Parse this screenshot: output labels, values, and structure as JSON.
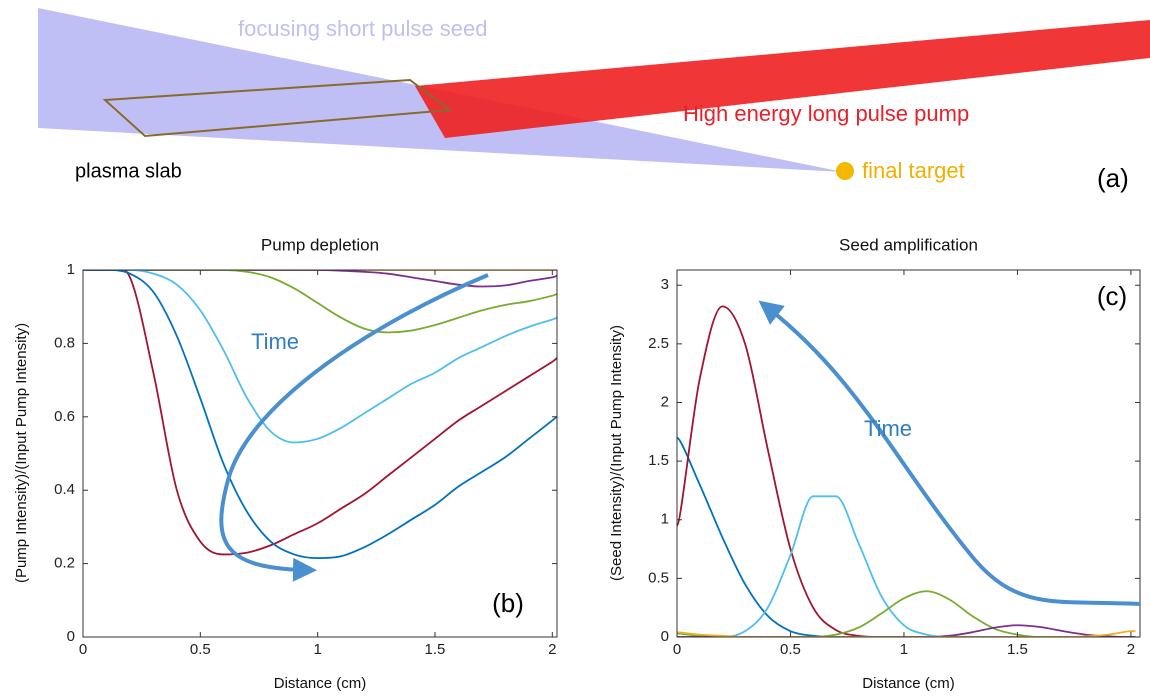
{
  "diagram": {
    "seed_label": "focusing short pulse seed",
    "pump_label": "High energy long pulse pump",
    "slab_label": "plasma slab",
    "target_label": "final target",
    "panel_label": "(a)"
  },
  "chart_data": [
    {
      "type": "line",
      "title": "Pump depletion",
      "xlabel": "Distance (cm)",
      "ylabel": "(Pump Intensity)/(Input Pump Intensity)",
      "annotations": [
        "Time",
        "(b)"
      ],
      "x": [
        0,
        0.1,
        0.2,
        0.3,
        0.4,
        0.5,
        0.6,
        0.7,
        0.8,
        0.9,
        1.0,
        1.1,
        1.2,
        1.3,
        1.4,
        1.5,
        1.6,
        1.7,
        1.8,
        1.9,
        2.0,
        2.02
      ],
      "xlim": [
        0,
        2.02
      ],
      "xticks": [
        0,
        0.5,
        1,
        1.5,
        2
      ],
      "ylim": [
        0,
        1
      ],
      "yticks": [
        0,
        0.2,
        0.4,
        0.6,
        0.8,
        1
      ],
      "series": [
        {
          "color": "#edb120",
          "values": [
            1,
            1,
            1,
            1,
            1,
            1,
            1,
            1,
            1,
            1,
            1,
            1,
            1,
            1,
            1,
            1,
            1,
            1,
            1,
            1,
            1,
            1
          ]
        },
        {
          "color": "#7e2f8e",
          "values": [
            1,
            1,
            1,
            1,
            1,
            1,
            1,
            1,
            1,
            1,
            1,
            0.998,
            0.995,
            0.99,
            0.98,
            0.97,
            0.96,
            0.955,
            0.958,
            0.97,
            0.98,
            0.985
          ]
        },
        {
          "color": "#77ac30",
          "values": [
            1,
            1,
            1,
            1,
            1,
            1,
            1,
            0.995,
            0.98,
            0.95,
            0.91,
            0.87,
            0.84,
            0.83,
            0.835,
            0.85,
            0.87,
            0.89,
            0.905,
            0.915,
            0.93,
            0.935
          ]
        },
        {
          "color": "#4dbeee",
          "values": [
            1,
            1,
            1,
            0.99,
            0.96,
            0.89,
            0.78,
            0.65,
            0.56,
            0.53,
            0.54,
            0.57,
            0.61,
            0.65,
            0.69,
            0.72,
            0.76,
            0.79,
            0.82,
            0.845,
            0.865,
            0.87
          ]
        },
        {
          "color": "#a2142f",
          "values": [
            1,
            1,
            0.98,
            0.72,
            0.4,
            0.26,
            0.225,
            0.23,
            0.25,
            0.28,
            0.31,
            0.35,
            0.39,
            0.44,
            0.49,
            0.54,
            0.59,
            0.63,
            0.67,
            0.71,
            0.75,
            0.76
          ]
        },
        {
          "color": "#0072bd",
          "values": [
            1,
            1,
            0.99,
            0.94,
            0.82,
            0.65,
            0.47,
            0.34,
            0.26,
            0.225,
            0.215,
            0.22,
            0.245,
            0.28,
            0.32,
            0.36,
            0.41,
            0.45,
            0.49,
            0.54,
            0.59,
            0.6
          ]
        }
      ]
    },
    {
      "type": "line",
      "title": "Seed amplification",
      "xlabel": "Distance (cm)",
      "ylabel": "(Seed Intensity)/(Input Pump Intensity)",
      "annotations": [
        "Time",
        "(c)"
      ],
      "x": [
        0,
        0.1,
        0.2,
        0.3,
        0.4,
        0.5,
        0.6,
        0.7,
        0.8,
        0.9,
        1.0,
        1.1,
        1.2,
        1.3,
        1.4,
        1.5,
        1.6,
        1.7,
        1.8,
        1.9,
        2.0,
        2.02
      ],
      "xlim": [
        0,
        2.04
      ],
      "xticks": [
        0,
        0.5,
        1,
        1.5,
        2
      ],
      "ylim": [
        0,
        3.13
      ],
      "yticks": [
        0,
        0.5,
        1,
        1.5,
        2,
        2.5,
        3
      ],
      "series": [
        {
          "color": "#0072bd",
          "values": [
            1.7,
            1.3,
            0.85,
            0.45,
            0.18,
            0.05,
            0.01,
            0,
            0,
            0,
            0,
            0,
            0,
            0,
            0,
            0,
            0,
            0,
            0,
            0,
            0,
            0
          ]
        },
        {
          "color": "#a2142f",
          "values": [
            0.95,
            2.2,
            2.82,
            2.5,
            1.6,
            0.75,
            0.25,
            0.06,
            0.01,
            0,
            0,
            0,
            0,
            0,
            0,
            0,
            0,
            0,
            0,
            0,
            0,
            0
          ]
        },
        {
          "color": "#4dbeee",
          "values": [
            0,
            0,
            0,
            0.05,
            0.25,
            0.7,
            1.2,
            1.2,
            0.8,
            0.35,
            0.1,
            0.02,
            0,
            0,
            0,
            0,
            0,
            0,
            0,
            0,
            0,
            0
          ]
        },
        {
          "color": "#77ac30",
          "values": [
            0.03,
            0.01,
            0,
            0,
            0,
            0,
            0,
            0.02,
            0.08,
            0.2,
            0.33,
            0.39,
            0.32,
            0.18,
            0.07,
            0.02,
            0,
            0,
            0,
            0,
            0,
            0
          ]
        },
        {
          "color": "#7e2f8e",
          "values": [
            0,
            0,
            0,
            0,
            0,
            0,
            0,
            0,
            0,
            0,
            0,
            0,
            0.01,
            0.04,
            0.08,
            0.1,
            0.085,
            0.05,
            0.02,
            0.005,
            0,
            0
          ]
        },
        {
          "color": "#edb120",
          "values": [
            0.04,
            0.02,
            0.01,
            0,
            0,
            0,
            0,
            0,
            0,
            0,
            0,
            0,
            0,
            0,
            0,
            0,
            0,
            0,
            0.005,
            0.02,
            0.05,
            0.05
          ]
        }
      ]
    }
  ]
}
